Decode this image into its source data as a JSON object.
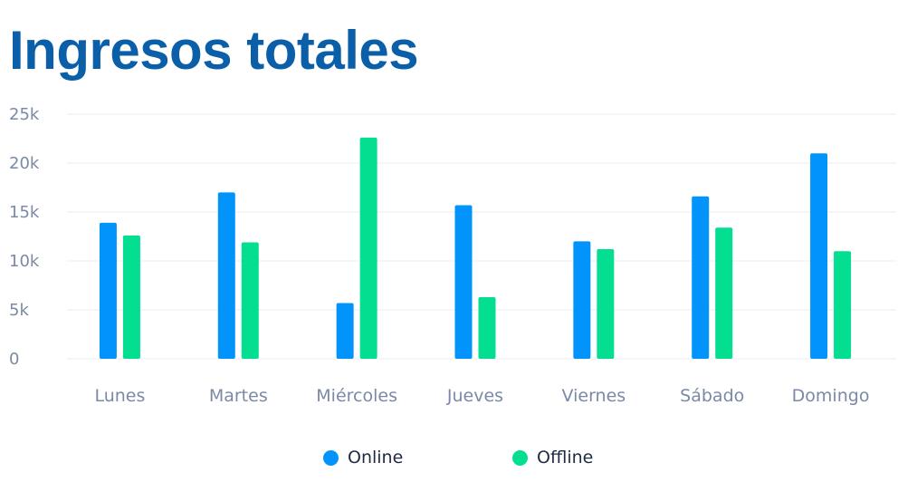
{
  "title": "Ingresos totales",
  "colors": {
    "title": "#0a5fa8",
    "online": "#0394fb",
    "offline": "#03de91",
    "grid": "#e8edf3",
    "tick": "#7a8aa6"
  },
  "chart_data": {
    "type": "bar",
    "title": "Ingresos totales",
    "xlabel": "",
    "ylabel": "",
    "ylim": [
      0,
      25000
    ],
    "yticks": [
      0,
      5000,
      10000,
      15000,
      20000,
      25000
    ],
    "ytick_labels": [
      "0",
      "5k",
      "10k",
      "15k",
      "20k",
      "25k"
    ],
    "grid": true,
    "legend_position": "bottom-center",
    "categories": [
      "Lunes",
      "Martes",
      "Miércoles",
      "Jueves",
      "Viernes",
      "Sábado",
      "Domingo"
    ],
    "series": [
      {
        "name": "Online",
        "color": "#0394fb",
        "values": [
          13900,
          17000,
          5700,
          15700,
          12000,
          16600,
          21000
        ]
      },
      {
        "name": "Offline",
        "color": "#03de91",
        "values": [
          12600,
          11900,
          22600,
          6300,
          11200,
          13400,
          11000
        ]
      }
    ]
  }
}
